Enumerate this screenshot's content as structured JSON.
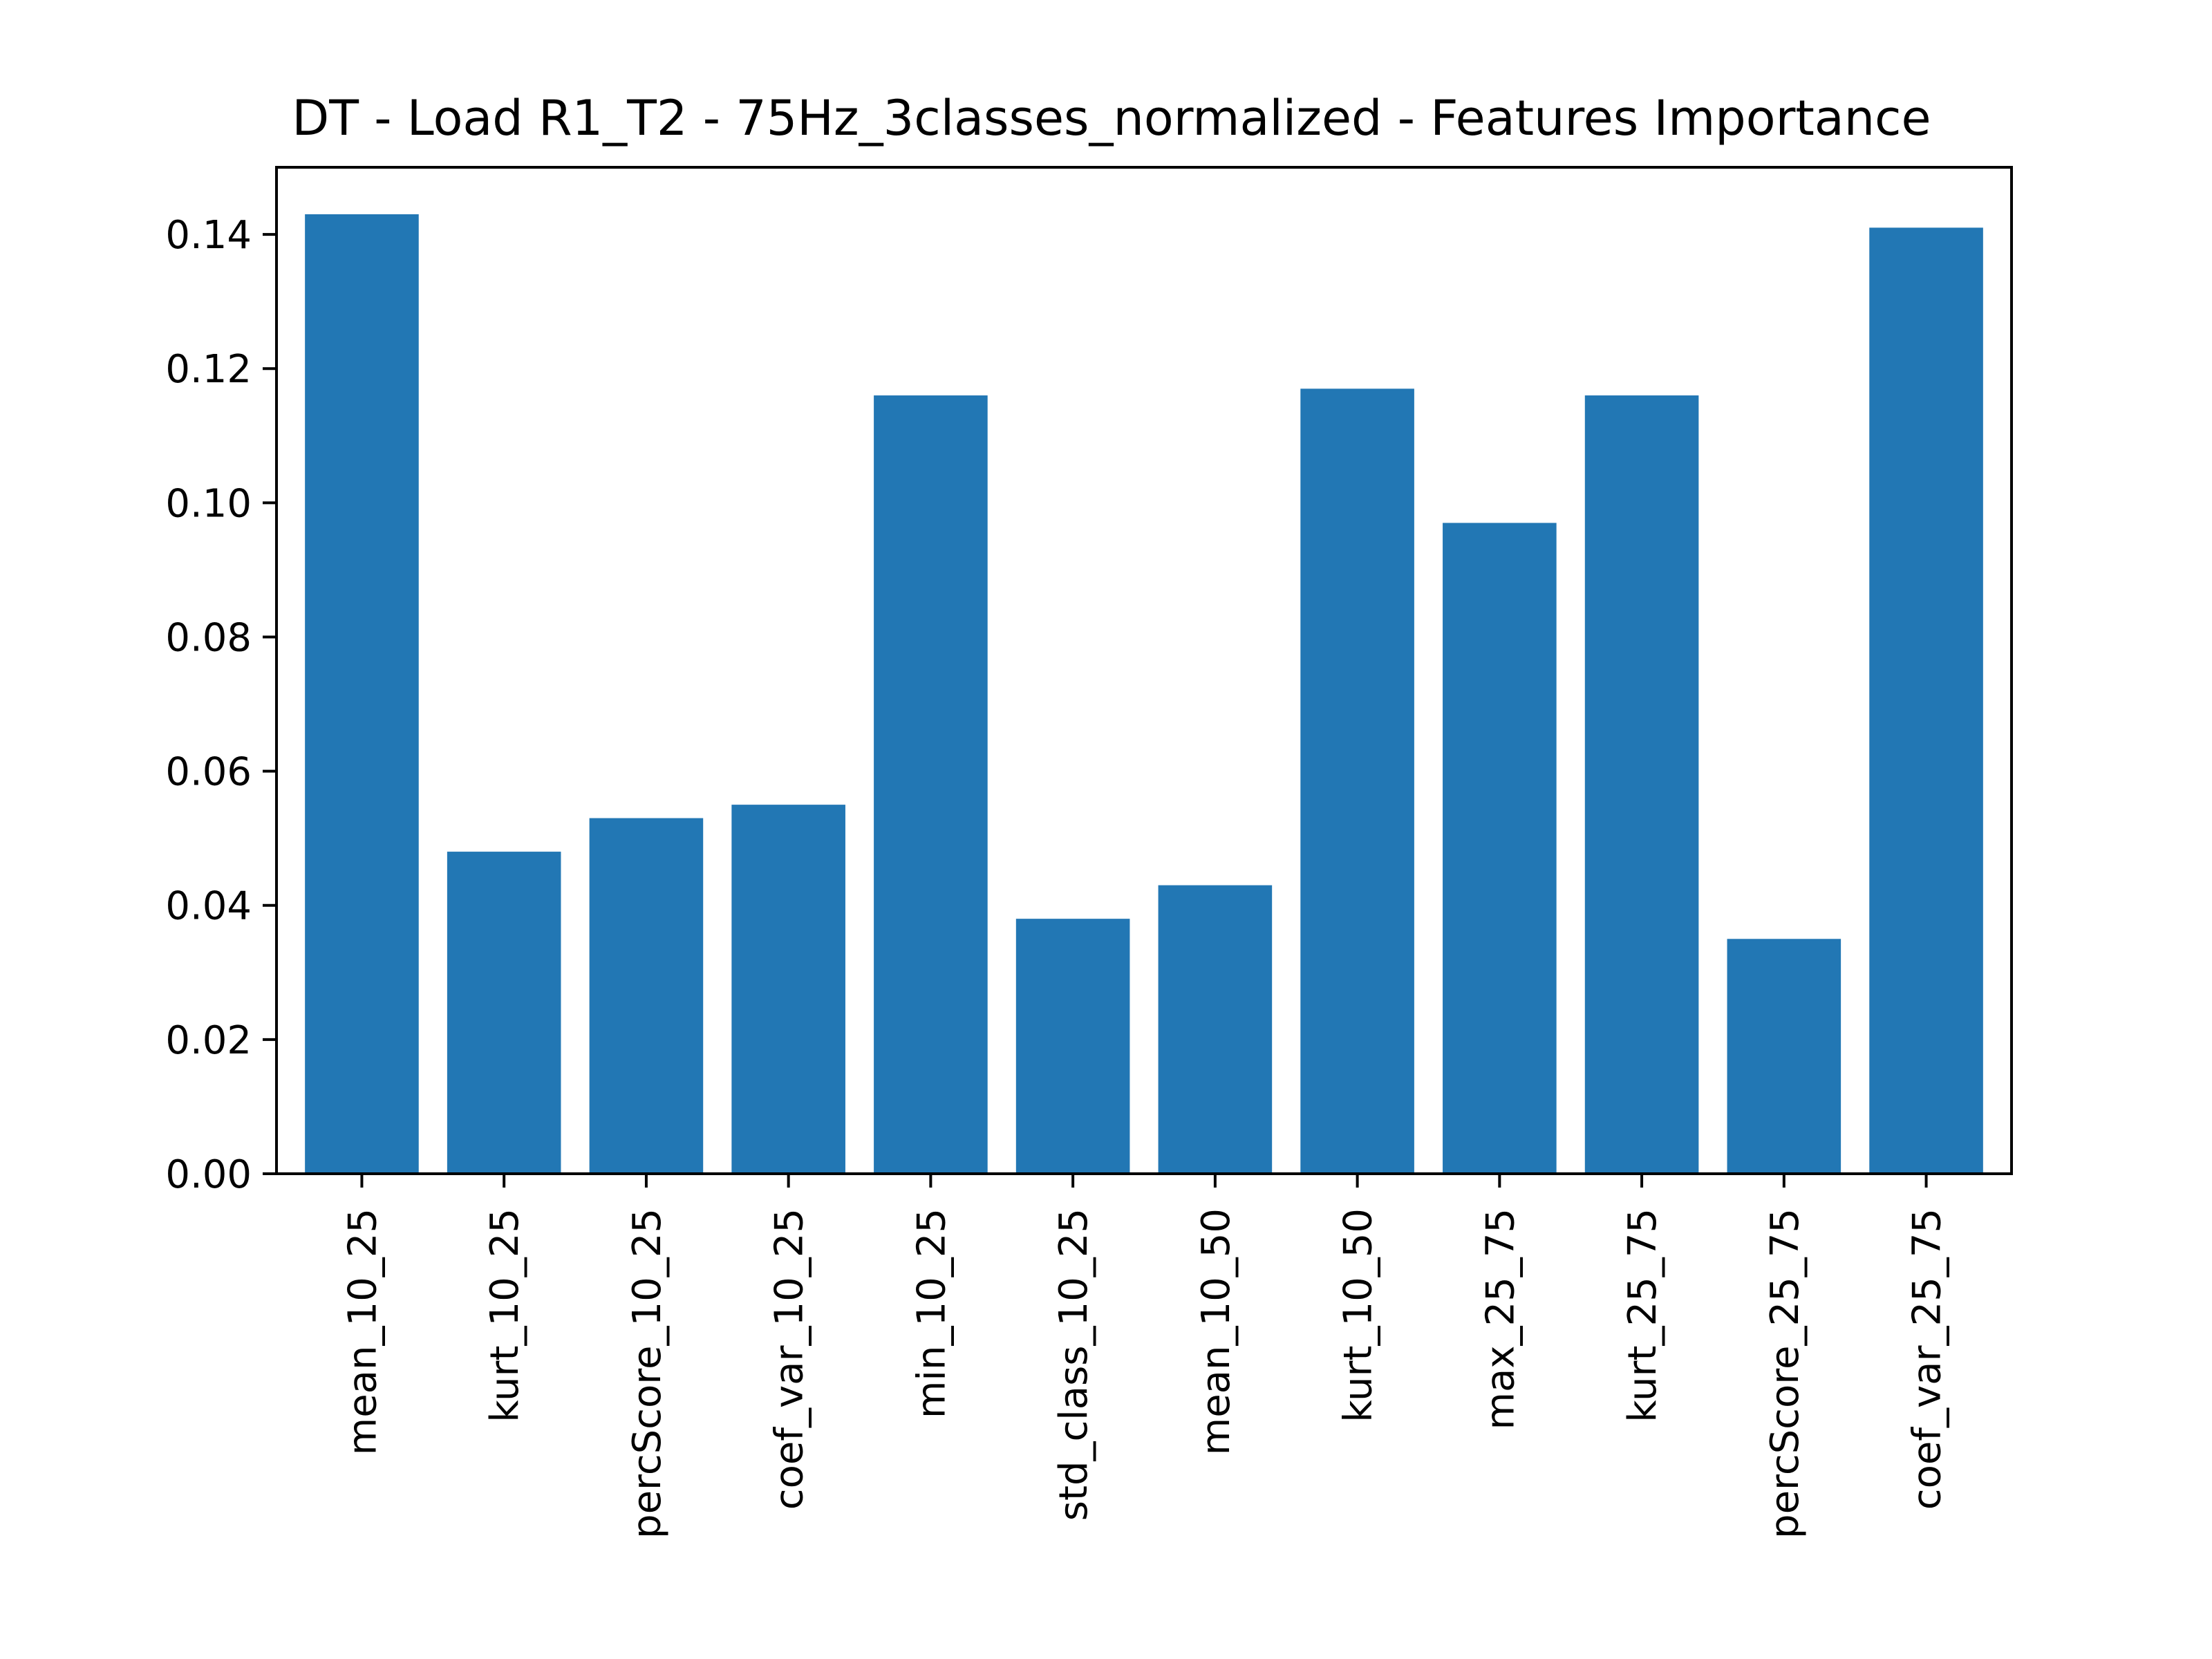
{
  "chart_data": {
    "type": "bar",
    "title": "DT - Load R1_T2 - 75Hz_3classes_normalized - Features Importance",
    "xlabel": "",
    "ylabel": "",
    "categories": [
      "mean_10_25",
      "kurt_10_25",
      "percScore_10_25",
      "coef_var_10_25",
      "min_10_25",
      "std_class_10_25",
      "mean_10_50",
      "kurt_10_50",
      "max_25_75",
      "kurt_25_75",
      "percScore_25_75",
      "coef_var_25_75"
    ],
    "values": [
      0.143,
      0.048,
      0.053,
      0.055,
      0.116,
      0.038,
      0.043,
      0.117,
      0.097,
      0.116,
      0.035,
      0.141
    ],
    "ylim": [
      0,
      0.15
    ],
    "yticks": [
      "0.00",
      "0.02",
      "0.04",
      "0.06",
      "0.08",
      "0.10",
      "0.12",
      "0.14"
    ],
    "bar_color": "#2277b4",
    "grid": false,
    "legend": "none"
  }
}
